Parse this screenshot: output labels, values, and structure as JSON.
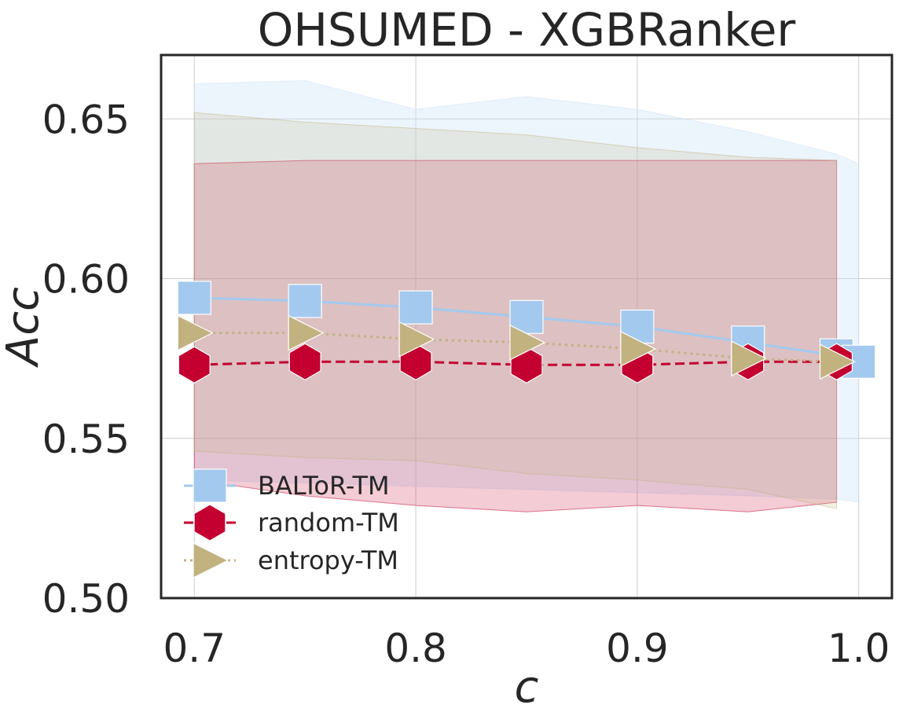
{
  "chart_data": {
    "type": "line",
    "title": "OHSUMED - XGBRanker",
    "xlabel": "c",
    "ylabel": "Acc",
    "xlim": [
      0.685,
      1.015
    ],
    "ylim": [
      0.5,
      0.67
    ],
    "xticks": [
      "0.7",
      "0.8",
      "0.9",
      "1.0"
    ],
    "xtick_values": [
      0.7,
      0.8,
      0.9,
      1.0
    ],
    "yticks": [
      "0.50",
      "0.55",
      "0.60",
      "0.65"
    ],
    "ytick_values": [
      0.5,
      0.55,
      0.6,
      0.65
    ],
    "grid": true,
    "legend_position": "lower-left",
    "series": [
      {
        "name": "BALToR-TM",
        "color": "#a3c9ee",
        "linestyle": "solid",
        "marker": "square",
        "x": [
          0.7,
          0.75,
          0.8,
          0.85,
          0.9,
          0.95,
          0.99,
          1.0
        ],
        "y": [
          0.594,
          0.593,
          0.591,
          0.588,
          0.585,
          0.58,
          0.576,
          0.574
        ],
        "band_upper": [
          0.661,
          0.662,
          0.653,
          0.657,
          0.653,
          0.646,
          0.639,
          0.636
        ],
        "band_lower": [
          0.537,
          0.536,
          0.535,
          0.534,
          0.533,
          0.532,
          0.531,
          0.53
        ],
        "band_color": "#cfe3f8"
      },
      {
        "name": "random-TM",
        "color": "#c3002f",
        "linestyle": "dashed",
        "marker": "hexagon",
        "x": [
          0.7,
          0.75,
          0.8,
          0.85,
          0.9,
          0.95,
          0.99
        ],
        "y": [
          0.573,
          0.574,
          0.574,
          0.573,
          0.573,
          0.574,
          0.574
        ],
        "band_upper": [
          0.636,
          0.637,
          0.637,
          0.637,
          0.637,
          0.637,
          0.637
        ],
        "band_lower": [
          0.537,
          0.532,
          0.529,
          0.527,
          0.529,
          0.527,
          0.53
        ],
        "band_color": "#c3002f"
      },
      {
        "name": "entropy-TM",
        "color": "#c2b280",
        "linestyle": "dotted",
        "marker": "triangle-right",
        "x": [
          0.7,
          0.75,
          0.8,
          0.85,
          0.9,
          0.95,
          0.99
        ],
        "y": [
          0.583,
          0.583,
          0.581,
          0.58,
          0.578,
          0.575,
          0.574
        ],
        "band_upper": [
          0.652,
          0.649,
          0.647,
          0.645,
          0.641,
          0.638,
          0.637
        ],
        "band_lower": [
          0.546,
          0.544,
          0.543,
          0.539,
          0.537,
          0.534,
          0.528
        ],
        "band_color": "#c2b280"
      }
    ]
  }
}
